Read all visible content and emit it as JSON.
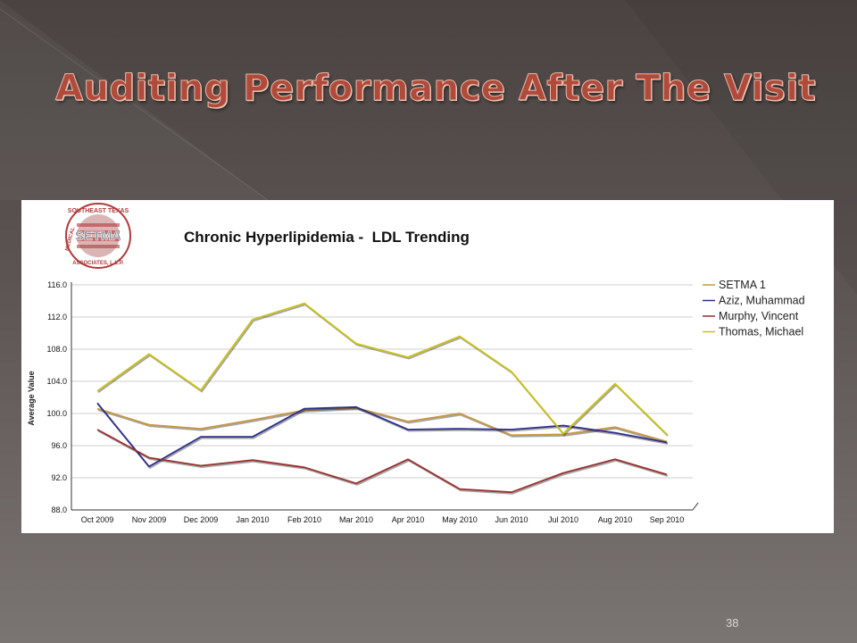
{
  "slide": {
    "title": "Auditing Performance After The Visit",
    "page_number": "38"
  },
  "logo": {
    "top_text": "SOUTHEAST TEXAS",
    "center_text": "SETMA",
    "left_text": "MEDICAL",
    "bottom_text": "ASSOCIATES, L.L.P.",
    "colors": {
      "red": "#b03a3a",
      "stripe": "#c9a3a3",
      "gray": "#7d8a93"
    }
  },
  "chart_data": {
    "type": "line",
    "title": "Chronic Hyperlipidemia -  LDL Trending",
    "xlabel": "",
    "ylabel": "Average Value",
    "ylim": [
      88.0,
      116.0
    ],
    "yticks": [
      "88.0",
      "92.0",
      "96.0",
      "100.0",
      "104.0",
      "108.0",
      "112.0",
      "116.0"
    ],
    "grid": true,
    "legend_position": "right",
    "categories": [
      "Oct 2009",
      "Nov 2009",
      "Dec 2009",
      "Jan 2010",
      "Feb 2010",
      "Mar 2010",
      "Apr 2010",
      "May 2010",
      "Jun 2010",
      "Jul 2010",
      "Aug 2010",
      "Sep 2010"
    ],
    "series": [
      {
        "name": "SETMA 1",
        "color": "#c8963e",
        "values": [
          100.6,
          98.6,
          98.1,
          99.2,
          100.4,
          100.7,
          99.0,
          100.0,
          97.3,
          97.4,
          98.3,
          96.5
        ]
      },
      {
        "name": "Aziz, Muhammad",
        "color": "#2e2e8c",
        "values": [
          101.3,
          93.4,
          97.1,
          97.1,
          100.6,
          100.8,
          98.0,
          98.1,
          98.0,
          98.5,
          97.6,
          96.4
        ]
      },
      {
        "name": "Murphy, Vincent",
        "color": "#9b2f2f",
        "values": [
          98.0,
          94.5,
          93.5,
          94.2,
          93.3,
          91.3,
          94.3,
          90.6,
          90.2,
          92.6,
          94.3,
          92.4
        ]
      },
      {
        "name": "Thomas, Michael",
        "color": "#c9c214",
        "values": [
          102.8,
          107.4,
          102.9,
          111.7,
          113.7,
          108.7,
          107.0,
          109.6,
          105.2,
          97.5,
          103.7,
          97.4
        ]
      }
    ]
  }
}
